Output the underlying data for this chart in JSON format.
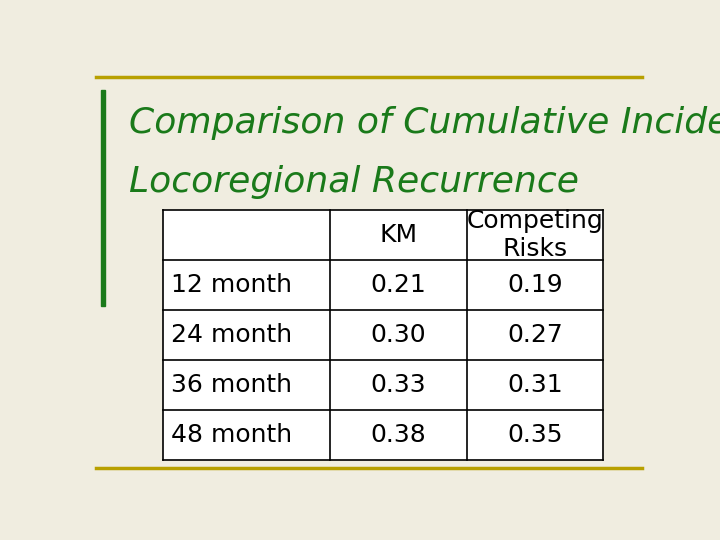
{
  "title_line1": "Comparison of Cumulative Incidence of",
  "title_line2": "Locoregional Recurrence",
  "title_color": "#1a7a1a",
  "background_color": "#f0ede0",
  "border_color": "#b8a000",
  "table_data": {
    "col_headers": [
      "",
      "KM",
      "Competing\nRisks"
    ],
    "rows": [
      [
        "12 month",
        "0.21",
        "0.19"
      ],
      [
        "24 month",
        "0.30",
        "0.27"
      ],
      [
        "36 month",
        "0.33",
        "0.31"
      ],
      [
        "48 month",
        "0.38",
        "0.35"
      ]
    ]
  },
  "table_bg": "#ffffff",
  "table_text_color": "#000000",
  "title_fontsize": 26,
  "table_fontsize": 18,
  "left_bar_color": "#1a7a1a"
}
